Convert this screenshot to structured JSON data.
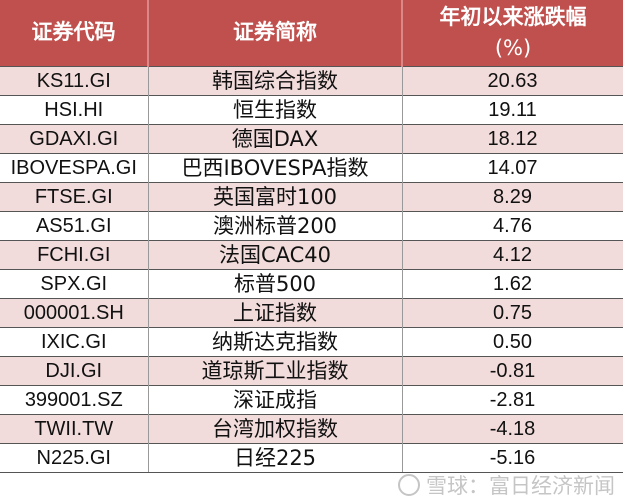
{
  "table": {
    "headers": [
      "证券代码",
      "证券简称",
      "年初以来涨跌幅",
      "(%)"
    ],
    "rows": [
      {
        "code": "KS11.GI",
        "name": "韩国综合指数",
        "change": "20.63"
      },
      {
        "code": "HSI.HI",
        "name": "恒生指数",
        "change": "19.11"
      },
      {
        "code": "GDAXI.GI",
        "name": "德国DAX",
        "change": "18.12"
      },
      {
        "code": "IBOVESPA.GI",
        "name": "巴西IBOVESPA指数",
        "change": "14.07"
      },
      {
        "code": "FTSE.GI",
        "name": "英国富时100",
        "change": "8.29"
      },
      {
        "code": "AS51.GI",
        "name": "澳洲标普200",
        "change": "4.76"
      },
      {
        "code": "FCHI.GI",
        "name": "法国CAC40",
        "change": "4.12"
      },
      {
        "code": "SPX.GI",
        "name": "标普500",
        "change": "1.62"
      },
      {
        "code": "000001.SH",
        "name": "上证指数",
        "change": "0.75"
      },
      {
        "code": "IXIC.GI",
        "name": "纳斯达克指数",
        "change": "0.50"
      },
      {
        "code": "DJI.GI",
        "name": "道琼斯工业指数",
        "change": "-0.81"
      },
      {
        "code": "399001.SZ",
        "name": "深证成指",
        "change": "-2.81"
      },
      {
        "code": "TWII.TW",
        "name": "台湾加权指数",
        "change": "-4.18"
      },
      {
        "code": "N225.GI",
        "name": "日经225",
        "change": "-5.16"
      }
    ]
  },
  "watermark": "雪球：富日经济新闻",
  "colors": {
    "header": "#c0504d",
    "stripe": "#f2dcdb"
  }
}
